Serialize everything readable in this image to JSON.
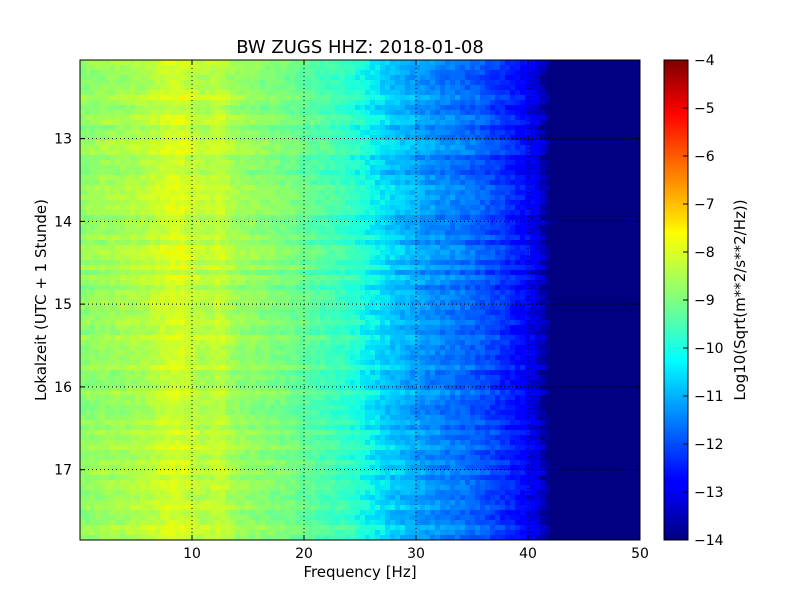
{
  "chart_data": {
    "type": "heatmap",
    "title": "BW ZUGS HHZ: 2018-01-08",
    "xlabel": "Frequency [Hz]",
    "ylabel": "Lokalzeit (UTC + 1 Stunde)",
    "xlim": [
      0,
      50
    ],
    "ylim": [
      12.05,
      17.85
    ],
    "y_inverted": true,
    "x_ticks": [
      10,
      20,
      30,
      40,
      50
    ],
    "y_ticks": [
      13,
      14,
      15,
      16,
      17
    ],
    "grid": true,
    "colormap": "jet",
    "colorbar": {
      "label": "Log10(Sqrt(m**2/s**2/Hz))",
      "range": [
        -14,
        -4
      ],
      "ticks": [
        -4,
        -5,
        -6,
        -7,
        -8,
        -9,
        -10,
        -11,
        -12,
        -13,
        -14
      ]
    },
    "spectrum_profile": {
      "frequency_hz": [
        0,
        2,
        4,
        6,
        7,
        8,
        9,
        10,
        11,
        12,
        12.5,
        13,
        14,
        16,
        18,
        19,
        20,
        22,
        24,
        25,
        26,
        28,
        30,
        32,
        34,
        36,
        37,
        38,
        39,
        40,
        41,
        42,
        44,
        46,
        48,
        50
      ],
      "log10_amplitude": [
        -8.8,
        -8.6,
        -8.5,
        -8.3,
        -8.1,
        -7.9,
        -7.9,
        -8.1,
        -8.3,
        -8.2,
        -8.0,
        -8.3,
        -8.6,
        -8.8,
        -9.0,
        -9.1,
        -9.3,
        -9.6,
        -9.9,
        -10.1,
        -10.4,
        -10.8,
        -11.1,
        -11.4,
        -11.6,
        -11.9,
        -12.1,
        -12.3,
        -12.6,
        -12.8,
        -13.3,
        -14.0,
        -14.0,
        -14.0,
        -14.0,
        -14.0
      ]
    }
  }
}
